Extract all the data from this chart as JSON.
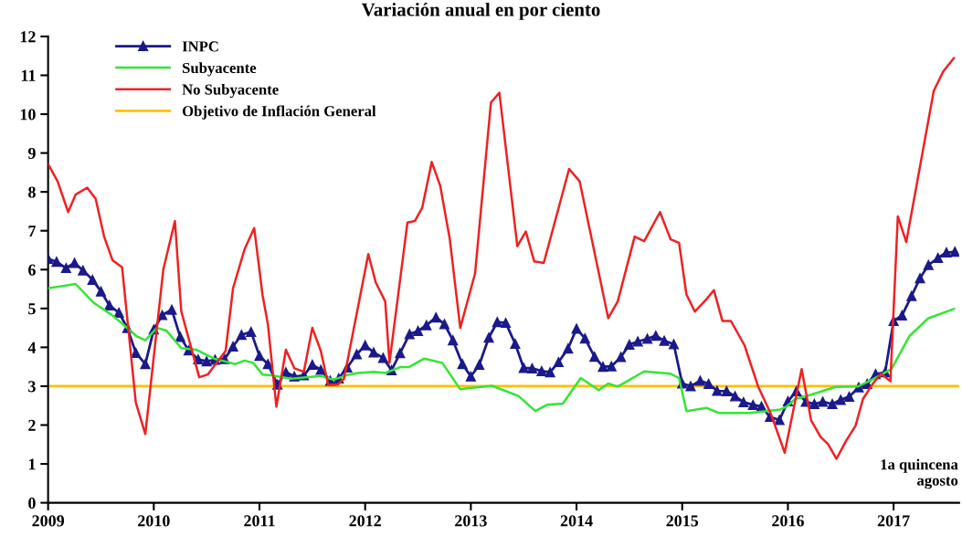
{
  "chart_data": {
    "type": "line",
    "title": "Variación anual en por ciento",
    "xlim": [
      2009,
      2017.62
    ],
    "xticks": [
      2009,
      2010,
      2011,
      2012,
      2013,
      2014,
      2015,
      2016,
      2017
    ],
    "ylim": [
      0,
      12
    ],
    "yticks": [
      0,
      1,
      2,
      3,
      4,
      5,
      6,
      7,
      8,
      9,
      10,
      11,
      12
    ],
    "grid": false,
    "legend": "top left",
    "series": [
      {
        "name": "INPC",
        "color": "#1a1a8c",
        "marker": "triangle",
        "x": [
          2009.0,
          2009.08,
          2009.17,
          2009.25,
          2009.33,
          2009.42,
          2009.5,
          2009.58,
          2009.67,
          2009.75,
          2009.83,
          2009.92,
          2010.0,
          2010.08,
          2010.17,
          2010.25,
          2010.33,
          2010.42,
          2010.5,
          2010.58,
          2010.67,
          2010.75,
          2010.83,
          2010.92,
          2011.0,
          2011.08,
          2011.17,
          2011.25,
          2011.33,
          2011.42,
          2011.5,
          2011.58,
          2011.67,
          2011.75,
          2011.83,
          2011.92,
          2012.0,
          2012.08,
          2012.17,
          2012.25,
          2012.33,
          2012.42,
          2012.5,
          2012.58,
          2012.67,
          2012.75,
          2012.83,
          2012.92,
          2013.0,
          2013.08,
          2013.17,
          2013.25,
          2013.33,
          2013.42,
          2013.5,
          2013.58,
          2013.67,
          2013.75,
          2013.83,
          2013.92,
          2014.0,
          2014.08,
          2014.17,
          2014.25,
          2014.33,
          2014.42,
          2014.5,
          2014.58,
          2014.67,
          2014.75,
          2014.83,
          2014.92,
          2015.0,
          2015.08,
          2015.17,
          2015.25,
          2015.33,
          2015.42,
          2015.5,
          2015.58,
          2015.67,
          2015.75,
          2015.83,
          2015.92,
          2016.0,
          2016.08,
          2016.17,
          2016.25,
          2016.33,
          2016.42,
          2016.5,
          2016.58,
          2016.67,
          2016.75,
          2016.83,
          2016.92,
          2017.0,
          2017.08,
          2017.17,
          2017.25,
          2017.33,
          2017.42,
          2017.5,
          2017.58
        ],
        "values": [
          6.28,
          6.2,
          6.04,
          6.17,
          5.98,
          5.74,
          5.44,
          5.08,
          4.89,
          4.5,
          3.86,
          3.57,
          4.46,
          4.83,
          4.97,
          4.27,
          3.92,
          3.69,
          3.64,
          3.68,
          3.7,
          4.02,
          4.32,
          4.4,
          3.78,
          3.57,
          3.04,
          3.36,
          3.25,
          3.28,
          3.55,
          3.42,
          3.14,
          3.2,
          3.48,
          3.82,
          4.05,
          3.87,
          3.73,
          3.41,
          3.85,
          4.34,
          4.42,
          4.57,
          4.77,
          4.6,
          4.18,
          3.57,
          3.25,
          3.55,
          4.25,
          4.65,
          4.63,
          4.09,
          3.47,
          3.46,
          3.39,
          3.36,
          3.62,
          3.97,
          4.48,
          4.23,
          3.76,
          3.5,
          3.51,
          3.75,
          4.07,
          4.15,
          4.22,
          4.3,
          4.17,
          4.08,
          3.07,
          3.0,
          3.14,
          3.06,
          2.88,
          2.87,
          2.74,
          2.59,
          2.52,
          2.48,
          2.21,
          2.13,
          2.61,
          2.87,
          2.6,
          2.54,
          2.6,
          2.54,
          2.65,
          2.73,
          2.97,
          3.06,
          3.31,
          3.36,
          4.68,
          4.82,
          5.32,
          5.78,
          6.12,
          6.3,
          6.44,
          6.46
        ]
      },
      {
        "name": "Subyacente",
        "color": "#33e633",
        "marker": "none",
        "x": [
          2009.0,
          2009.26,
          2009.43,
          2009.6,
          2009.71,
          2009.84,
          2009.92,
          2010.03,
          2010.12,
          2010.26,
          2010.4,
          2010.57,
          2010.77,
          2010.86,
          2010.94,
          2011.03,
          2011.11,
          2011.3,
          2011.58,
          2011.7,
          2011.85,
          2011.93,
          2012.08,
          2012.19,
          2012.33,
          2012.42,
          2012.56,
          2012.73,
          2012.9,
          2013.01,
          2013.2,
          2013.45,
          2013.61,
          2013.72,
          2013.87,
          2014.04,
          2014.21,
          2014.3,
          2014.39,
          2014.64,
          2014.89,
          2014.97,
          2015.04,
          2015.23,
          2015.35,
          2015.64,
          2015.93,
          2015.99,
          2016.07,
          2016.22,
          2016.45,
          2016.66,
          2016.8,
          2016.98,
          2017.15,
          2017.33,
          2017.57
        ],
        "values": [
          5.52,
          5.63,
          5.15,
          4.84,
          4.59,
          4.28,
          4.18,
          4.5,
          4.43,
          3.98,
          3.94,
          3.71,
          3.57,
          3.66,
          3.6,
          3.3,
          3.28,
          3.19,
          3.26,
          3.17,
          3.3,
          3.34,
          3.37,
          3.34,
          3.49,
          3.5,
          3.71,
          3.6,
          2.92,
          2.96,
          3.01,
          2.75,
          2.36,
          2.52,
          2.55,
          3.21,
          2.9,
          3.07,
          2.99,
          3.38,
          3.32,
          3.21,
          2.36,
          2.44,
          2.31,
          2.31,
          2.4,
          2.48,
          2.67,
          2.78,
          2.98,
          2.99,
          3.17,
          3.44,
          4.29,
          4.75,
          4.99
        ]
      },
      {
        "name": "No Subyacente",
        "color": "#ee2222",
        "marker": "none",
        "x": [
          2009.0,
          2009.09,
          2009.19,
          2009.26,
          2009.37,
          2009.45,
          2009.53,
          2009.61,
          2009.7,
          2009.83,
          2009.92,
          2010.09,
          2010.2,
          2010.26,
          2010.43,
          2010.51,
          2010.68,
          2010.75,
          2010.86,
          2010.95,
          2011.03,
          2011.08,
          2011.16,
          2011.25,
          2011.33,
          2011.42,
          2011.5,
          2011.58,
          2011.65,
          2011.74,
          2011.8,
          2012.03,
          2012.1,
          2012.19,
          2012.23,
          2012.4,
          2012.47,
          2012.54,
          2012.63,
          2012.71,
          2012.8,
          2012.9,
          2013.04,
          2013.19,
          2013.27,
          2013.44,
          2013.52,
          2013.6,
          2013.69,
          2013.93,
          2014.03,
          2014.3,
          2014.39,
          2014.55,
          2014.64,
          2014.79,
          2014.89,
          2014.97,
          2015.04,
          2015.12,
          2015.23,
          2015.3,
          2015.38,
          2015.46,
          2015.59,
          2015.72,
          2015.84,
          2015.97,
          2016.13,
          2016.22,
          2016.31,
          2016.38,
          2016.46,
          2016.55,
          2016.64,
          2016.71,
          2016.8,
          2016.88,
          2016.97,
          2017.04,
          2017.12,
          2017.38,
          2017.47,
          2017.57
        ],
        "values": [
          8.72,
          8.27,
          7.48,
          7.93,
          8.11,
          7.82,
          6.85,
          6.24,
          6.06,
          2.58,
          1.77,
          6.0,
          7.25,
          4.93,
          3.23,
          3.3,
          3.91,
          5.52,
          6.53,
          7.07,
          5.33,
          4.59,
          2.47,
          3.94,
          3.46,
          3.37,
          4.5,
          3.91,
          3.04,
          3.04,
          3.19,
          6.4,
          5.67,
          5.18,
          3.6,
          7.21,
          7.25,
          7.59,
          8.77,
          8.16,
          6.8,
          4.5,
          5.9,
          10.3,
          10.55,
          6.6,
          6.98,
          6.21,
          6.17,
          8.59,
          8.27,
          4.75,
          5.18,
          6.85,
          6.73,
          7.48,
          6.78,
          6.69,
          5.36,
          4.92,
          5.24,
          5.47,
          4.68,
          4.68,
          4.05,
          2.98,
          2.28,
          1.29,
          3.44,
          2.12,
          1.69,
          1.51,
          1.13,
          1.59,
          1.98,
          2.67,
          3.05,
          3.32,
          3.13,
          7.37,
          6.71,
          10.6,
          11.1,
          11.44
        ]
      }
    ],
    "ref_lines": [
      {
        "axis": "y",
        "value": 3,
        "label": "Objetivo de Inflación General",
        "color": "#ffc000",
        "line_style": "solid"
      }
    ],
    "annotations": [
      "1a quincena\nagosto"
    ]
  }
}
